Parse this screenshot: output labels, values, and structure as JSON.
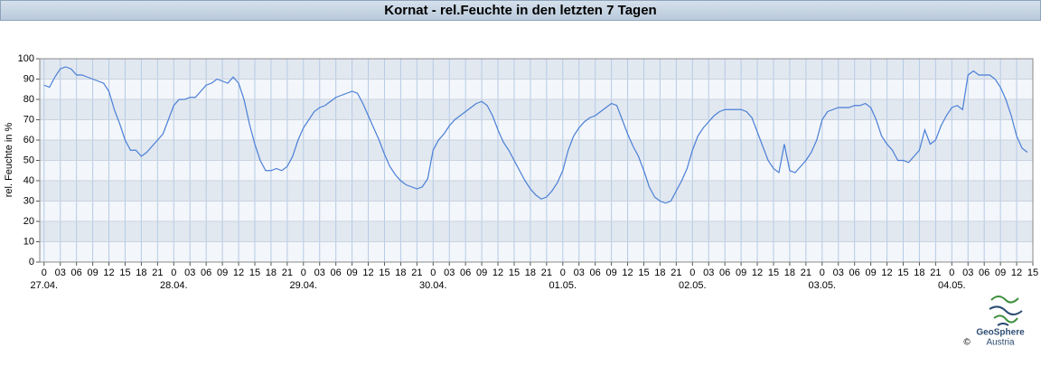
{
  "chart_data": {
    "type": "line",
    "title": "Kornat - rel.Feuchte in den letzten 7 Tagen",
    "y_label": "rel. Feuchte in %",
    "xlim": [
      -0.8,
      183
    ],
    "ylim": [
      0,
      100
    ],
    "yticks": [
      0,
      10,
      20,
      30,
      40,
      50,
      60,
      70,
      80,
      90,
      100
    ],
    "xticks": [
      {
        "value": 0,
        "label": "0"
      },
      {
        "value": 3,
        "label": "03"
      },
      {
        "value": 6,
        "label": "06"
      },
      {
        "value": 9,
        "label": "09"
      },
      {
        "value": 12,
        "label": "12"
      },
      {
        "value": 15,
        "label": "15"
      },
      {
        "value": 18,
        "label": "18"
      },
      {
        "value": 21,
        "label": "21"
      },
      {
        "value": 24,
        "label": "0"
      },
      {
        "value": 27,
        "label": "03"
      },
      {
        "value": 30,
        "label": "06"
      },
      {
        "value": 33,
        "label": "09"
      },
      {
        "value": 36,
        "label": "12"
      },
      {
        "value": 39,
        "label": "15"
      },
      {
        "value": 42,
        "label": "18"
      },
      {
        "value": 45,
        "label": "21"
      },
      {
        "value": 48,
        "label": "0"
      },
      {
        "value": 51,
        "label": "03"
      },
      {
        "value": 54,
        "label": "06"
      },
      {
        "value": 57,
        "label": "09"
      },
      {
        "value": 60,
        "label": "12"
      },
      {
        "value": 63,
        "label": "15"
      },
      {
        "value": 66,
        "label": "18"
      },
      {
        "value": 69,
        "label": "21"
      },
      {
        "value": 72,
        "label": "0"
      },
      {
        "value": 75,
        "label": "03"
      },
      {
        "value": 78,
        "label": "06"
      },
      {
        "value": 81,
        "label": "09"
      },
      {
        "value": 84,
        "label": "12"
      },
      {
        "value": 87,
        "label": "15"
      },
      {
        "value": 90,
        "label": "18"
      },
      {
        "value": 93,
        "label": "21"
      },
      {
        "value": 96,
        "label": "0"
      },
      {
        "value": 99,
        "label": "03"
      },
      {
        "value": 102,
        "label": "06"
      },
      {
        "value": 105,
        "label": "09"
      },
      {
        "value": 108,
        "label": "12"
      },
      {
        "value": 111,
        "label": "15"
      },
      {
        "value": 114,
        "label": "18"
      },
      {
        "value": 117,
        "label": "21"
      },
      {
        "value": 120,
        "label": "0"
      },
      {
        "value": 123,
        "label": "03"
      },
      {
        "value": 126,
        "label": "06"
      },
      {
        "value": 129,
        "label": "09"
      },
      {
        "value": 132,
        "label": "12"
      },
      {
        "value": 135,
        "label": "15"
      },
      {
        "value": 138,
        "label": "18"
      },
      {
        "value": 141,
        "label": "21"
      },
      {
        "value": 144,
        "label": "0"
      },
      {
        "value": 147,
        "label": "03"
      },
      {
        "value": 150,
        "label": "06"
      },
      {
        "value": 153,
        "label": "09"
      },
      {
        "value": 156,
        "label": "12"
      },
      {
        "value": 159,
        "label": "15"
      },
      {
        "value": 162,
        "label": "18"
      },
      {
        "value": 165,
        "label": "21"
      },
      {
        "value": 168,
        "label": "0"
      },
      {
        "value": 171,
        "label": "03"
      },
      {
        "value": 174,
        "label": "06"
      },
      {
        "value": 177,
        "label": "09"
      },
      {
        "value": 180,
        "label": "12"
      },
      {
        "value": 183,
        "label": "15"
      }
    ],
    "day_labels": [
      {
        "value": 0,
        "label": "27.04."
      },
      {
        "value": 24,
        "label": "28.04."
      },
      {
        "value": 48,
        "label": "29.04."
      },
      {
        "value": 72,
        "label": "30.04."
      },
      {
        "value": 96,
        "label": "01.05."
      },
      {
        "value": 120,
        "label": "02.05."
      },
      {
        "value": 144,
        "label": "03.05."
      },
      {
        "value": 168,
        "label": "04.05."
      }
    ],
    "grid": true,
    "band_colors": [
      "#f3f6fa",
      "#e2e8f0"
    ],
    "x": [
      0,
      1,
      2,
      3,
      4,
      5,
      6,
      7,
      8,
      9,
      10,
      11,
      12,
      13,
      14,
      15,
      16,
      17,
      18,
      19,
      20,
      21,
      22,
      23,
      24,
      25,
      26,
      27,
      28,
      29,
      30,
      31,
      32,
      33,
      34,
      35,
      36,
      37,
      38,
      39,
      40,
      41,
      42,
      43,
      44,
      45,
      46,
      47,
      48,
      49,
      50,
      51,
      52,
      53,
      54,
      55,
      56,
      57,
      58,
      59,
      60,
      61,
      62,
      63,
      64,
      65,
      66,
      67,
      68,
      69,
      70,
      71,
      72,
      73,
      74,
      75,
      76,
      77,
      78,
      79,
      80,
      81,
      82,
      83,
      84,
      85,
      86,
      87,
      88,
      89,
      90,
      91,
      92,
      93,
      94,
      95,
      96,
      97,
      98,
      99,
      100,
      101,
      102,
      103,
      104,
      105,
      106,
      107,
      108,
      109,
      110,
      111,
      112,
      113,
      114,
      115,
      116,
      117,
      118,
      119,
      120,
      121,
      122,
      123,
      124,
      125,
      126,
      127,
      128,
      129,
      130,
      131,
      132,
      133,
      134,
      135,
      136,
      137,
      138,
      139,
      140,
      141,
      142,
      143,
      144,
      145,
      146,
      147,
      148,
      149,
      150,
      151,
      152,
      153,
      154,
      155,
      156,
      157,
      158,
      159,
      160,
      161,
      162,
      163,
      164,
      165,
      166,
      167,
      168,
      169,
      170,
      171,
      172,
      173,
      174,
      175,
      176,
      177,
      178,
      179,
      180,
      181,
      182
    ],
    "series": [
      {
        "color": "#4a7fd6",
        "values": [
          87,
          86,
          91,
          95,
          96,
          95,
          92,
          92,
          91,
          90,
          89,
          88,
          84,
          75,
          68,
          60,
          55,
          55,
          52,
          54,
          57,
          60,
          63,
          70,
          77,
          80,
          80,
          81,
          81,
          84,
          87,
          88,
          90,
          89,
          88,
          91,
          88,
          80,
          68,
          58,
          50,
          45,
          45,
          46,
          45,
          47,
          52,
          60,
          66,
          70,
          74,
          76,
          77,
          79,
          81,
          82,
          83,
          84,
          83,
          78,
          72,
          66,
          60,
          53,
          47,
          43,
          40,
          38,
          37,
          36,
          37,
          41,
          55,
          60,
          63,
          67,
          70,
          72,
          74,
          76,
          78,
          79,
          77,
          72,
          65,
          59,
          55,
          50,
          45,
          40,
          36,
          33,
          31,
          32,
          35,
          39,
          45,
          55,
          62,
          66,
          69,
          71,
          72,
          74,
          76,
          78,
          77,
          70,
          63,
          57,
          52,
          45,
          37,
          32,
          30,
          29,
          30,
          35,
          40,
          46,
          55,
          62,
          66,
          69,
          72,
          74,
          75,
          75,
          75,
          75,
          74,
          71,
          64,
          57,
          50,
          46,
          44,
          58,
          45,
          44,
          47,
          50,
          54,
          60,
          70,
          74,
          75,
          76,
          76,
          76,
          77,
          77,
          78,
          76,
          70,
          62,
          58,
          55,
          50,
          50,
          49,
          52,
          55,
          65,
          58,
          60,
          67,
          72,
          76,
          77,
          75,
          92,
          94,
          92,
          92,
          92,
          90,
          86,
          80,
          72,
          62,
          56,
          54
        ]
      }
    ],
    "logo": {
      "name": "GeoSphere",
      "sub": "Austria",
      "copyright": "©"
    }
  }
}
